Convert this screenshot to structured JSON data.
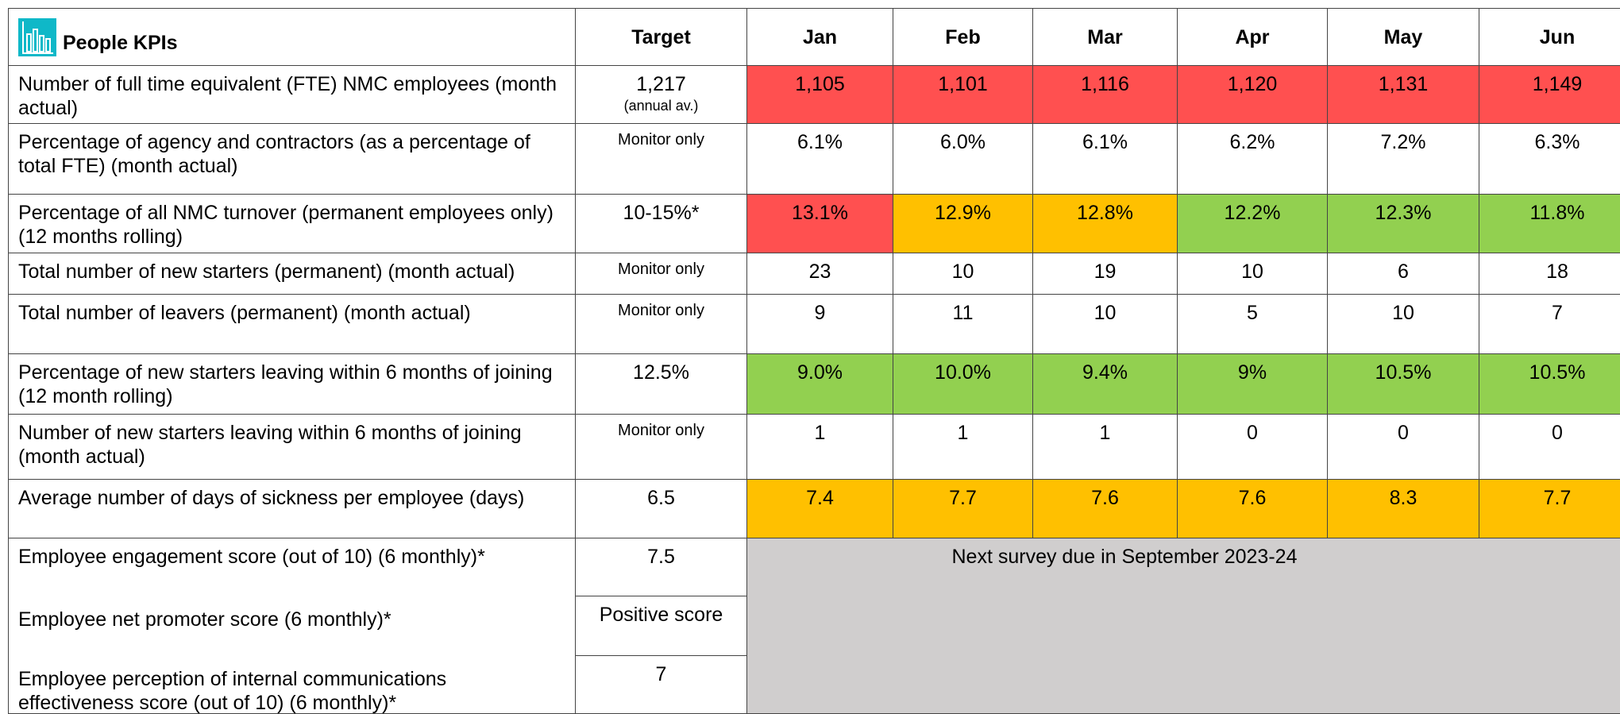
{
  "table": {
    "title": "People KPIs",
    "columns": [
      "Target",
      "Jan",
      "Feb",
      "Mar",
      "Apr",
      "May",
      "Jun"
    ],
    "rows": [
      {
        "label": "Number of full time equivalent (FTE) NMC employees (month actual)",
        "target": "1,217",
        "target_note": "(annual av.)",
        "values": [
          "1,105",
          "1,101",
          "1,116",
          "1,120",
          "1,131",
          "1,149"
        ],
        "colors": [
          "#ff5050",
          "#ff5050",
          "#ff5050",
          "#ff5050",
          "#ff5050",
          "#ff5050"
        ]
      },
      {
        "label": "Percentage of agency and contractors (as a percentage of total FTE) (month actual)",
        "target": "Monitor only",
        "values": [
          "6.1%",
          "6.0%",
          "6.1%",
          "6.2%",
          "7.2%",
          "6.3%"
        ],
        "colors": [
          "#ffffff",
          "#ffffff",
          "#ffffff",
          "#ffffff",
          "#ffffff",
          "#ffffff"
        ]
      },
      {
        "label": "Percentage of all NMC turnover (permanent employees only) (12 months rolling)",
        "target": "10-15%*",
        "values": [
          "13.1%",
          "12.9%",
          "12.8%",
          "12.2%",
          "12.3%",
          "11.8%"
        ],
        "colors": [
          "#ff5050",
          "#ffc000",
          "#ffc000",
          "#92d050",
          "#92d050",
          "#92d050"
        ]
      },
      {
        "label": "Total number of new starters (permanent) (month actual)",
        "target": "Monitor only",
        "values": [
          "23",
          "10",
          "19",
          "10",
          "6",
          "18"
        ],
        "colors": [
          "#ffffff",
          "#ffffff",
          "#ffffff",
          "#ffffff",
          "#ffffff",
          "#ffffff"
        ]
      },
      {
        "label": "Total number of leavers (permanent) (month actual)",
        "target": "Monitor only",
        "values": [
          "9",
          "11",
          "10",
          "5",
          "10",
          "7"
        ],
        "colors": [
          "#ffffff",
          "#ffffff",
          "#ffffff",
          "#ffffff",
          "#ffffff",
          "#ffffff"
        ]
      },
      {
        "label": "Percentage of new starters leaving within 6 months of joining (12 month rolling)",
        "target": "12.5%",
        "values": [
          "9.0%",
          "10.0%",
          "9.4%",
          "9%",
          "10.5%",
          "10.5%"
        ],
        "colors": [
          "#92d050",
          "#92d050",
          "#92d050",
          "#92d050",
          "#92d050",
          "#92d050"
        ]
      },
      {
        "label": "Number of new starters leaving within 6 months of joining (month actual)",
        "target": "Monitor only",
        "values": [
          "1",
          "1",
          "1",
          "0",
          "0",
          "0"
        ],
        "colors": [
          "#ffffff",
          "#ffffff",
          "#ffffff",
          "#ffffff",
          "#ffffff",
          "#ffffff"
        ]
      },
      {
        "label": "Average number of days of sickness per employee (days)",
        "target": "6.5",
        "values": [
          "7.4",
          "7.7",
          "7.6",
          "7.6",
          "8.3",
          "7.7"
        ],
        "colors": [
          "#ffc000",
          "#ffc000",
          "#ffc000",
          "#ffc000",
          "#ffc000",
          "#ffc000"
        ]
      }
    ],
    "survey_rows": [
      {
        "label": "Employee engagement score (out of 10) (6 monthly)*",
        "target": "7.5"
      },
      {
        "label": "Employee net promoter score (6 monthly)*",
        "target": "Positive score"
      },
      {
        "label": "Employee perception of internal communications effectiveness score (out of 10) (6 monthly)*",
        "target": "7"
      }
    ],
    "survey_note": "Next survey due in September 2023-24"
  }
}
